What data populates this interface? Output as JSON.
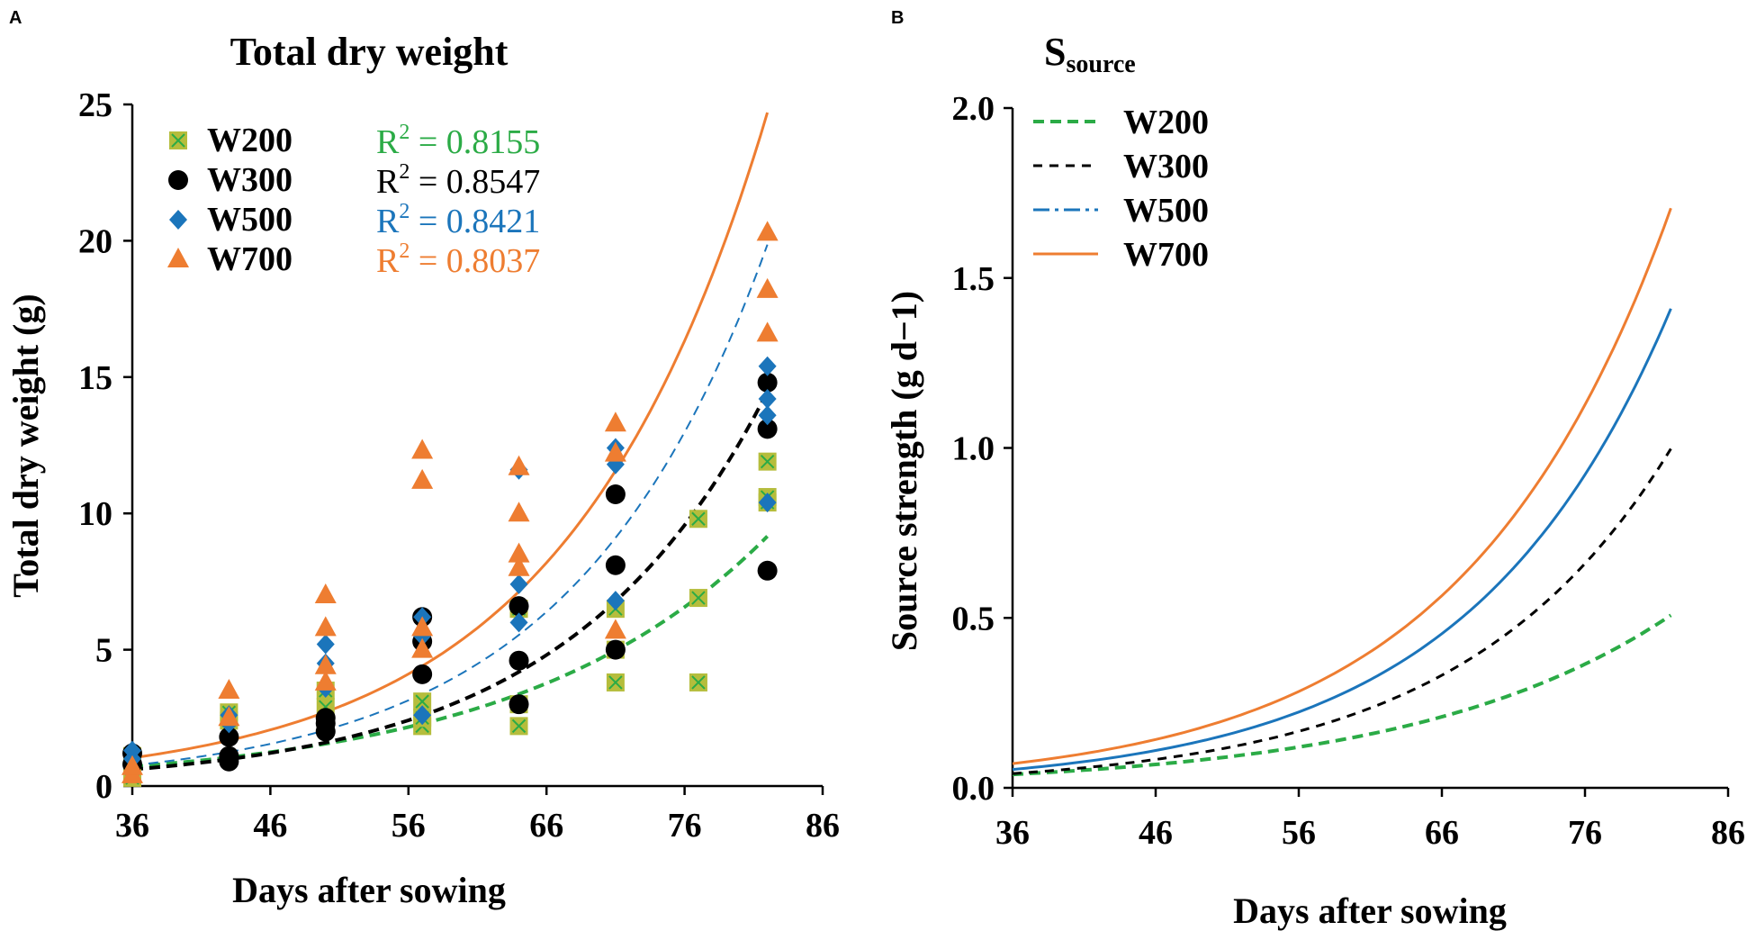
{
  "figure": {
    "panels": [
      "A",
      "B"
    ]
  },
  "chart_data": [
    {
      "id": "A",
      "type": "scatter",
      "panel_letter": "A",
      "title": "Total dry weight",
      "xlabel": "Days after sowing",
      "ylabel": "Total dry weight (g)",
      "xlim": [
        36,
        86
      ],
      "ylim": [
        0,
        25
      ],
      "xticks": [
        36,
        46,
        56,
        66,
        76,
        86
      ],
      "yticks": [
        0,
        5,
        10,
        15,
        20,
        25
      ],
      "legend_position": "top-left",
      "series": [
        {
          "name": "W200",
          "color": "#b5bd3c",
          "cross_color": "#2bab46",
          "marker": "square-x",
          "r2_prefix": "R",
          "r2_sup": "2",
          "r2_value": " = 0.8155",
          "r2_color": "#2bab46",
          "fit": {
            "a": 0.0967,
            "b": 0.0555,
            "style": "dash-bold",
            "color": "#2bab46"
          },
          "points": [
            [
              36,
              0.3
            ],
            [
              36,
              0.6
            ],
            [
              36,
              1.1
            ],
            [
              43,
              2.4
            ],
            [
              43,
              2.7
            ],
            [
              50,
              2.3
            ],
            [
              50,
              2.9
            ],
            [
              50,
              3.5
            ],
            [
              57,
              2.2
            ],
            [
              57,
              2.5
            ],
            [
              57,
              3.1
            ],
            [
              64,
              2.2
            ],
            [
              64,
              3.0
            ],
            [
              64,
              6.5
            ],
            [
              71,
              3.8
            ],
            [
              71,
              5.0
            ],
            [
              71,
              6.5
            ],
            [
              77,
              3.8
            ],
            [
              77,
              6.9
            ],
            [
              77,
              9.8
            ],
            [
              82,
              10.4
            ],
            [
              82,
              10.6
            ],
            [
              82,
              11.9
            ]
          ]
        },
        {
          "name": "W300",
          "color": "#000000",
          "marker": "circle",
          "r2_prefix": "R",
          "r2_sup": "2",
          "r2_value": " = 0.8547",
          "r2_color": "#000000",
          "fit": {
            "a": 0.0509,
            "b": 0.0689,
            "style": "dash-bold",
            "color": "#000000"
          },
          "points": [
            [
              36,
              0.8
            ],
            [
              36,
              1.2
            ],
            [
              43,
              0.9
            ],
            [
              43,
              1.1
            ],
            [
              43,
              1.8
            ],
            [
              50,
              2.0
            ],
            [
              50,
              2.3
            ],
            [
              50,
              2.5
            ],
            [
              57,
              4.1
            ],
            [
              57,
              5.3
            ],
            [
              57,
              6.2
            ],
            [
              64,
              3.0
            ],
            [
              64,
              4.6
            ],
            [
              64,
              6.6
            ],
            [
              71,
              5.0
            ],
            [
              71,
              8.1
            ],
            [
              71,
              10.7
            ],
            [
              82,
              7.9
            ],
            [
              82,
              13.1
            ],
            [
              82,
              14.8
            ]
          ]
        },
        {
          "name": "W500",
          "color": "#1b75bb",
          "marker": "diamond",
          "r2_prefix": "R",
          "r2_sup": "2",
          "r2_value": " = 0.8421",
          "r2_color": "#1b75bb",
          "fit": {
            "a": 0.0593,
            "b": 0.0709,
            "style": "dash-thin",
            "color": "#1b75bb"
          },
          "points": [
            [
              36,
              0.5
            ],
            [
              36,
              1.0
            ],
            [
              36,
              1.3
            ],
            [
              43,
              2.3
            ],
            [
              43,
              2.6
            ],
            [
              50,
              3.6
            ],
            [
              50,
              4.5
            ],
            [
              50,
              5.2
            ],
            [
              57,
              2.6
            ],
            [
              57,
              5.5
            ],
            [
              57,
              6.2
            ],
            [
              64,
              6.0
            ],
            [
              64,
              7.4
            ],
            [
              64,
              11.6
            ],
            [
              71,
              6.8
            ],
            [
              71,
              11.8
            ],
            [
              71,
              12.4
            ],
            [
              82,
              10.4
            ],
            [
              82,
              13.6
            ],
            [
              82,
              14.2
            ],
            [
              82,
              15.4
            ]
          ]
        },
        {
          "name": "W700",
          "color": "#ee7d31",
          "marker": "triangle",
          "r2_prefix": "R",
          "r2_sup": "2",
          "r2_value": " = 0.8037",
          "r2_color": "#ee7d31",
          "fit": {
            "a": 0.0862,
            "b": 0.069,
            "style": "solid",
            "color": "#ee7d31"
          },
          "points": [
            [
              36,
              0.4
            ],
            [
              36,
              0.7
            ],
            [
              43,
              2.5
            ],
            [
              43,
              3.5
            ],
            [
              50,
              3.8
            ],
            [
              50,
              4.4
            ],
            [
              50,
              5.8
            ],
            [
              50,
              7.0
            ],
            [
              57,
              5.0
            ],
            [
              57,
              5.8
            ],
            [
              57,
              11.2
            ],
            [
              57,
              12.3
            ],
            [
              64,
              8.0
            ],
            [
              64,
              8.5
            ],
            [
              64,
              10.0
            ],
            [
              64,
              11.7
            ],
            [
              71,
              5.7
            ],
            [
              71,
              12.2
            ],
            [
              71,
              13.3
            ],
            [
              82,
              16.6
            ],
            [
              82,
              18.2
            ],
            [
              82,
              20.3
            ]
          ]
        }
      ]
    },
    {
      "id": "B",
      "type": "line",
      "panel_letter": "B",
      "title_main": "S",
      "title_sub": "source",
      "xlabel": "Days after sowing",
      "ylabel": "Source strength (g d−1)",
      "xlim": [
        36,
        86
      ],
      "ylim": [
        0,
        2.0
      ],
      "xticks": [
        36,
        46,
        56,
        66,
        76,
        86
      ],
      "yticks": [
        0.0,
        0.5,
        1.0,
        1.5,
        2.0
      ],
      "ytick_labels": [
        "0.0",
        "0.5",
        "1.0",
        "1.5",
        "2.0"
      ],
      "legend_position": "top-left",
      "x_range": [
        36,
        82
      ],
      "series": [
        {
          "name": "W200",
          "color": "#2bab46",
          "style": "dash-bold",
          "a": 0.00536,
          "b": 0.0555
        },
        {
          "name": "W300",
          "color": "#000000",
          "style": "dash",
          "a": 0.00351,
          "b": 0.0689
        },
        {
          "name": "W500",
          "color": "#1b75bb",
          "style": "solid",
          "legend_style": "dashdot",
          "a": 0.00421,
          "b": 0.0709
        },
        {
          "name": "W700",
          "color": "#ee7d31",
          "style": "solid",
          "a": 0.00595,
          "b": 0.069
        }
      ]
    }
  ]
}
